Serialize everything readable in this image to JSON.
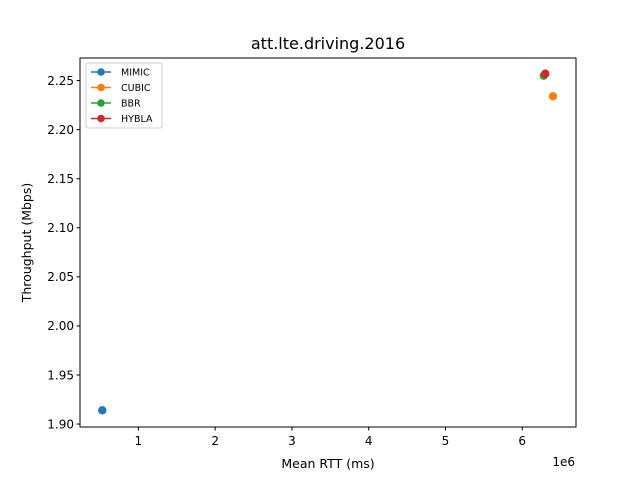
{
  "chart_data": {
    "type": "scatter",
    "title": "att.lte.driving.2016",
    "xlabel": "Mean RTT (ms)",
    "ylabel": "Throughput (Mbps)",
    "x_offset_label": "1e6",
    "xlim": [
      0.24,
      6.7
    ],
    "ylim": [
      1.897,
      2.273
    ],
    "xticks": [
      1,
      2,
      3,
      4,
      5,
      6
    ],
    "yticks": [
      1.9,
      1.95,
      2.0,
      2.05,
      2.1,
      2.15,
      2.2,
      2.25
    ],
    "xtick_labels": [
      "1",
      "2",
      "3",
      "4",
      "5",
      "6"
    ],
    "ytick_labels": [
      "1.90",
      "1.95",
      "2.00",
      "2.05",
      "2.10",
      "2.15",
      "2.20",
      "2.25"
    ],
    "legend_position": "top-left",
    "series": [
      {
        "name": "MIMIC",
        "color": "#1f77b4",
        "x": [
          0.53
        ],
        "y": [
          1.914
        ]
      },
      {
        "name": "CUBIC",
        "color": "#ff7f0e",
        "x": [
          6.4
        ],
        "y": [
          2.234
        ]
      },
      {
        "name": "BBR",
        "color": "#2ca02c",
        "x": [
          6.28
        ],
        "y": [
          2.255
        ]
      },
      {
        "name": "HYBLA",
        "color": "#d62728",
        "x": [
          6.3
        ],
        "y": [
          2.257
        ]
      }
    ]
  }
}
